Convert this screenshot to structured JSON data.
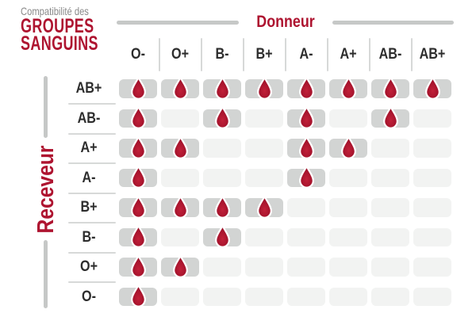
{
  "title": {
    "eyebrow": "Compatibilité des",
    "line1": "GROUPES",
    "line2": "SANGUINS"
  },
  "axes": {
    "donor": "Donneur",
    "receiver": "Receveur"
  },
  "donors": [
    "O-",
    "O+",
    "B-",
    "B+",
    "A-",
    "A+",
    "AB-",
    "AB+"
  ],
  "receivers": [
    "AB+",
    "AB-",
    "A+",
    "A-",
    "B+",
    "B-",
    "O+",
    "O-"
  ],
  "compatibility": [
    [
      1,
      1,
      1,
      1,
      1,
      1,
      1,
      1
    ],
    [
      1,
      0,
      1,
      0,
      1,
      0,
      1,
      0
    ],
    [
      1,
      1,
      0,
      0,
      1,
      1,
      0,
      0
    ],
    [
      1,
      0,
      0,
      0,
      1,
      0,
      0,
      0
    ],
    [
      1,
      1,
      1,
      1,
      0,
      0,
      0,
      0
    ],
    [
      1,
      0,
      1,
      0,
      0,
      0,
      0,
      0
    ],
    [
      1,
      1,
      0,
      0,
      0,
      0,
      0,
      0
    ],
    [
      1,
      0,
      0,
      0,
      0,
      0,
      0,
      0
    ]
  ],
  "icons": {
    "compatible": "blood-drop-icon"
  },
  "colors": {
    "accent": "#ae1430",
    "drop_inner": "#c22039",
    "drop_outer": "#970d26",
    "text_gray": "#8a8a8a",
    "text_dark": "#2d2d2d",
    "cell_active": "#d2d4d3",
    "cell_empty": "#f2f3f2",
    "divider": "#d7d9d8",
    "axis_line": "#c6c8c7",
    "drop_stroke": "#ffffff",
    "background": "#ffffff"
  },
  "chart_data": {
    "type": "heatmap",
    "title": "Compatibilité des GROUPES SANGUINS",
    "x_axis_label": "Donneur",
    "y_axis_label": "Receveur",
    "x_categories": [
      "O-",
      "O+",
      "B-",
      "B+",
      "A-",
      "A+",
      "AB-",
      "AB+"
    ],
    "y_categories": [
      "AB+",
      "AB-",
      "A+",
      "A-",
      "B+",
      "B-",
      "O+",
      "O-"
    ],
    "values": [
      [
        1,
        1,
        1,
        1,
        1,
        1,
        1,
        1
      ],
      [
        1,
        0,
        1,
        0,
        1,
        0,
        1,
        0
      ],
      [
        1,
        1,
        0,
        0,
        1,
        1,
        0,
        0
      ],
      [
        1,
        0,
        0,
        0,
        1,
        0,
        0,
        0
      ],
      [
        1,
        1,
        1,
        1,
        0,
        0,
        0,
        0
      ],
      [
        1,
        0,
        1,
        0,
        0,
        0,
        0,
        0
      ],
      [
        1,
        1,
        0,
        0,
        0,
        0,
        0,
        0
      ],
      [
        1,
        0,
        0,
        0,
        0,
        0,
        0,
        0
      ]
    ],
    "value_encoding": "1 = compatible (blood drop icon shown on dark gray cell), 0 = incompatible (empty light gray cell)",
    "grid": false,
    "legend": false
  }
}
